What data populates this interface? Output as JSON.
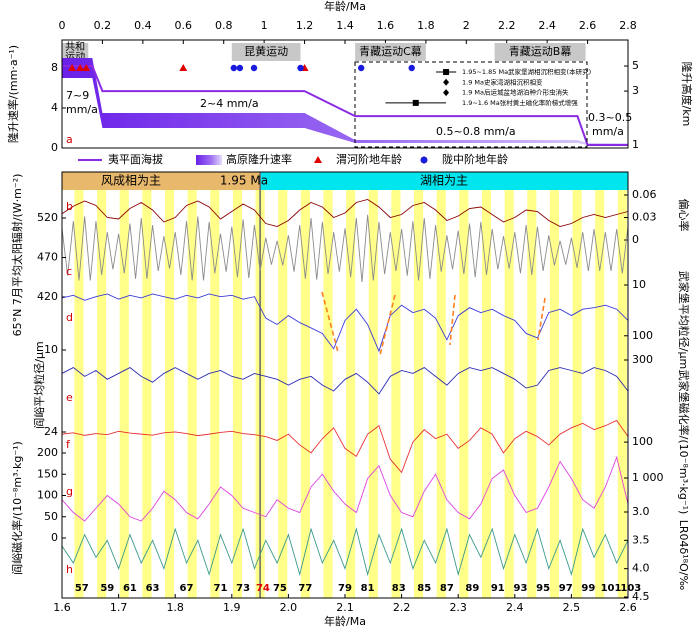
{
  "chart_data": [
    {
      "type": "line",
      "xlabel": "年龄/Ma",
      "ylabel": "隆升速率/(mm·a⁻¹)",
      "y2label": "隆升高度/km",
      "panel_label": "a",
      "xlim": [
        0,
        2.8
      ],
      "xticks": [
        0,
        0.2,
        0.4,
        0.6,
        0.8,
        1,
        1.2,
        1.4,
        1.6,
        1.8,
        2,
        2.2,
        2.4,
        2.6,
        2.8
      ],
      "ylim": [
        0,
        10.8
      ],
      "yticks": [
        0,
        4,
        8
      ],
      "y2lim": [
        0.94,
        8.5
      ],
      "y2ticks": [
        1,
        3,
        5
      ],
      "y2log": true,
      "events": [
        {
          "lines": [
            "共和",
            "运动"
          ],
          "start": 0,
          "end": 0.13
        },
        {
          "lines": [
            "昆黄运动"
          ],
          "start": 0.84,
          "end": 1.18
        },
        {
          "lines": [
            "青藏运动C幕"
          ],
          "start": 1.45,
          "end": 1.8
        },
        {
          "lines": [
            "青藏运动B幕"
          ],
          "start": 2.14,
          "end": 2.59
        }
      ],
      "annotations": [
        "7~9",
        "mm/a",
        "2~4 mm/a",
        "0.5~0.8 mm/a",
        "0.3~0.5",
        "mm/a"
      ],
      "series": [
        {
          "name": "夷平面海拔",
          "type": "line",
          "axis": "y2",
          "color": "#8a2be2",
          "x": [
            0,
            0.15,
            0.2,
            1.2,
            1.45,
            2.55,
            2.6,
            2.8
          ],
          "values": [
            5,
            5,
            3,
            3,
            1.8,
            1.8,
            1,
            1
          ]
        },
        {
          "name": "高原隆升速率",
          "type": "band",
          "color": "#7b2cf0",
          "x": [
            0,
            0.15,
            0.2,
            1.2,
            1.45,
            2.55,
            2.6,
            2.8
          ],
          "low": [
            7,
            7,
            2,
            2,
            0.5,
            0.5,
            0.3,
            0.3
          ],
          "high": [
            9,
            9,
            3.5,
            3.5,
            0.8,
            0.8,
            0.5,
            0.5
          ]
        },
        {
          "name": "渭河阶地年龄",
          "type": "marker",
          "marker": "triangle",
          "color": "#e00000",
          "x": [
            0.05,
            0.09,
            0.12,
            0.6,
            1.2
          ]
        },
        {
          "name": "陇中阶地年龄",
          "type": "marker",
          "marker": "circle",
          "color": "#1a1adc",
          "x": [
            0.85,
            0.88,
            0.95,
            1.18,
            1.48,
            1.73
          ]
        }
      ],
      "inset": [
        {
          "label": "1.95~1.85 Ma武家堡湖相沉积相变(本研究)",
          "marker": "square",
          "x": 1.9,
          "range": [
            1.85,
            1.95
          ]
        },
        {
          "label": "1.9 Ma史家湾湖相沉积相变",
          "marker": "diamond",
          "x": 1.9
        },
        {
          "label": "1.9 Ma后运城盆地湖泊种介形虫消失",
          "marker": "diamond",
          "x": 1.9
        },
        {
          "label": "1.9~1.6 Ma张村黄土磁化率阶梯式增强",
          "marker": "square",
          "x": 1.75,
          "range": [
            1.6,
            1.9
          ]
        }
      ]
    },
    {
      "type": "line",
      "xlabel": "年龄/Ma",
      "xlim": [
        1.6,
        2.6
      ],
      "xticks": [
        1.6,
        1.7,
        1.8,
        1.9,
        {
          "value": 2,
          "label": "2.0"
        },
        2.1,
        2.2,
        2.3,
        2.4,
        2.5,
        2.6
      ],
      "phases": [
        {
          "label": "风成相为主",
          "start": 1.6,
          "end": 1.95,
          "color": "#e8b86d"
        },
        {
          "label": "湖相为主",
          "start": 1.95,
          "end": 2.6,
          "color": "#00e5ee"
        }
      ],
      "boundary": {
        "x": 1.95,
        "label": "1.95 Ma"
      },
      "stripes": [
        [
          1.622,
          1.638
        ],
        [
          1.662,
          1.678
        ],
        [
          1.702,
          1.718
        ],
        [
          1.742,
          1.758
        ],
        [
          1.782,
          1.798
        ],
        [
          1.822,
          1.838
        ],
        [
          1.862,
          1.878
        ],
        [
          1.902,
          1.918
        ],
        [
          1.942,
          1.958
        ],
        [
          1.982,
          1.998
        ],
        [
          2.022,
          2.038
        ],
        [
          2.062,
          2.078
        ],
        [
          2.102,
          2.118
        ],
        [
          2.142,
          2.158
        ],
        [
          2.182,
          2.198
        ],
        [
          2.222,
          2.238
        ],
        [
          2.262,
          2.278
        ],
        [
          2.302,
          2.318
        ],
        [
          2.342,
          2.358
        ],
        [
          2.382,
          2.398
        ],
        [
          2.422,
          2.438
        ],
        [
          2.462,
          2.478
        ],
        [
          2.502,
          2.518
        ],
        [
          2.542,
          2.558
        ],
        [
          2.582,
          2.598
        ]
      ],
      "mis_labels": [
        {
          "text": "57",
          "x": 1.635
        },
        {
          "text": "59",
          "x": 1.68
        },
        {
          "text": "61",
          "x": 1.72
        },
        {
          "text": "63",
          "x": 1.76
        },
        {
          "text": "67",
          "x": 1.82
        },
        {
          "text": "71",
          "x": 1.88
        },
        {
          "text": "73",
          "x": 1.92
        },
        {
          "text": "74",
          "x": 1.955,
          "color": "#e00000"
        },
        {
          "text": "75",
          "x": 1.985
        },
        {
          "text": "77",
          "x": 2.03
        },
        {
          "text": "79",
          "x": 2.1
        },
        {
          "text": "81",
          "x": 2.14
        },
        {
          "text": "83",
          "x": 2.195
        },
        {
          "text": "85",
          "x": 2.24
        },
        {
          "text": "87",
          "x": 2.28
        },
        {
          "text": "89",
          "x": 2.325
        },
        {
          "text": "91",
          "x": 2.37
        },
        {
          "text": "93",
          "x": 2.41
        },
        {
          "text": "95",
          "x": 2.45
        },
        {
          "text": "97",
          "x": 2.49
        },
        {
          "text": "99",
          "x": 2.53
        },
        {
          "text": "101",
          "x": 2.57
        },
        {
          "text": "103",
          "x": 2.605
        }
      ],
      "x": [
        1.6,
        1.62,
        1.64,
        1.66,
        1.68,
        1.7,
        1.72,
        1.74,
        1.76,
        1.78,
        1.8,
        1.82,
        1.84,
        1.86,
        1.88,
        1.9,
        1.92,
        1.94,
        1.96,
        1.98,
        2,
        2.02,
        2.04,
        2.06,
        2.08,
        2.1,
        2.12,
        2.14,
        2.16,
        2.18,
        2.2,
        2.22,
        2.24,
        2.26,
        2.28,
        2.3,
        2.32,
        2.34,
        2.36,
        2.38,
        2.4,
        2.42,
        2.44,
        2.46,
        2.48,
        2.5,
        2.52,
        2.54,
        2.56,
        2.58,
        2.6
      ],
      "series": [
        {
          "name": "b",
          "axis_label": "偏心率",
          "side": "right",
          "color": "#8b0000",
          "ylim": [
            0,
            0.06
          ],
          "yticks": [
            0,
            0.03,
            0.06
          ],
          "values": [
            0.035,
            0.045,
            0.052,
            0.046,
            0.03,
            0.028,
            0.042,
            0.05,
            0.04,
            0.024,
            0.03,
            0.046,
            0.052,
            0.044,
            0.028,
            0.038,
            0.048,
            0.04,
            0.022,
            0.018,
            0.026,
            0.04,
            0.05,
            0.044,
            0.03,
            0.036,
            0.05,
            0.054,
            0.044,
            0.03,
            0.034,
            0.046,
            0.05,
            0.04,
            0.026,
            0.032,
            0.042,
            0.044,
            0.034,
            0.024,
            0.03,
            0.04,
            0.038,
            0.026,
            0.018,
            0.022,
            0.03,
            0.034,
            0.03,
            0.034,
            0.038
          ]
        },
        {
          "name": "c",
          "axis_label": "65°N 7月平均太阳辐射/(W·m⁻²)",
          "side": "left",
          "color": "#8c8c8c",
          "ylim": [
            420,
            520
          ],
          "yticks": [
            420,
            470,
            520
          ],
          "x": [
            1.6,
            1.61,
            1.62,
            1.63,
            1.64,
            1.65,
            1.66,
            1.67,
            1.68,
            1.69,
            1.7,
            1.71,
            1.72,
            1.73,
            1.74,
            1.75,
            1.76,
            1.77,
            1.78,
            1.79,
            1.8,
            1.81,
            1.82,
            1.83,
            1.84,
            1.85,
            1.86,
            1.87,
            1.88,
            1.89,
            1.9,
            1.91,
            1.92,
            1.93,
            1.94,
            1.95,
            1.96,
            1.97,
            1.98,
            1.99,
            2,
            2.01,
            2.02,
            2.03,
            2.04,
            2.05,
            2.06,
            2.07,
            2.08,
            2.09,
            2.1,
            2.11,
            2.12,
            2.13,
            2.14,
            2.15,
            2.16,
            2.17,
            2.18,
            2.19,
            2.2,
            2.21,
            2.22,
            2.23,
            2.24,
            2.25,
            2.26,
            2.27,
            2.28,
            2.29,
            2.3,
            2.31,
            2.32,
            2.33,
            2.34,
            2.35,
            2.36,
            2.37,
            2.38,
            2.39,
            2.4,
            2.41,
            2.42,
            2.43,
            2.44,
            2.45,
            2.46,
            2.47,
            2.48,
            2.49,
            2.5,
            2.51,
            2.52,
            2.53,
            2.54,
            2.55,
            2.56,
            2.57,
            2.58,
            2.59,
            2.6
          ],
          "values": [
            507,
            447,
            516,
            441,
            522,
            441,
            516,
            448,
            502,
            455,
            500,
            450,
            513,
            443,
            520,
            443,
            511,
            453,
            497,
            456,
            502,
            448,
            516,
            441,
            522,
            441,
            515,
            450,
            500,
            452,
            509,
            445,
            518,
            444,
            511,
            453,
            495,
            461,
            491,
            460,
            498,
            452,
            511,
            443,
            520,
            442,
            515,
            449,
            502,
            452,
            507,
            445,
            520,
            439,
            524,
            441,
            515,
            449,
            502,
            453,
            506,
            447,
            516,
            441,
            520,
            443,
            511,
            452,
            498,
            455,
            504,
            449,
            513,
            445,
            515,
            448,
            506,
            455,
            497,
            456,
            502,
            450,
            511,
            448,
            509,
            453,
            498,
            460,
            491,
            461,
            495,
            457,
            502,
            453,
            506,
            453,
            502,
            453,
            506,
            450,
            509
          ]
        },
        {
          "name": "d",
          "axis_label": "武家堡平均粒径/μm",
          "side": "right",
          "color": "#3a3ad8",
          "log": true,
          "inverted": true,
          "ylim": [
            10,
            300
          ],
          "yticks": [
            10,
            100,
            300
          ],
          "values": [
            18,
            16,
            20,
            17,
            15,
            19,
            16,
            18,
            15,
            17,
            19,
            16,
            18,
            15,
            17,
            16,
            19,
            17,
            45,
            60,
            40,
            55,
            70,
            90,
            180,
            50,
            30,
            60,
            200,
            40,
            25,
            35,
            30,
            45,
            120,
            40,
            28,
            35,
            30,
            40,
            50,
            90,
            110,
            35,
            30,
            40,
            30,
            28,
            25,
            30,
            50
          ]
        },
        {
          "name": "e",
          "axis_label": "阎峪平均粒径/μm",
          "side": "left",
          "color": "#2a2ab0",
          "inverted": true,
          "ylim": [
            10,
            24
          ],
          "yticks": [
            10,
            24
          ],
          "values": [
            14,
            13,
            14.5,
            13.5,
            15,
            14,
            13,
            14.5,
            15.5,
            14,
            13,
            14,
            15,
            14,
            13.5,
            14.5,
            15,
            14,
            14.5,
            15,
            16,
            15,
            14.5,
            16,
            17,
            15,
            14,
            15.5,
            17.5,
            14.5,
            13.5,
            14,
            13,
            14.5,
            16,
            14,
            13,
            13.5,
            13,
            14,
            15,
            16.5,
            16,
            13.5,
            13,
            13.5,
            14,
            13,
            13.5,
            14.5,
            17
          ]
        },
        {
          "name": "f",
          "axis_label": "武家堡磁化率/(10⁻⁸m³·kg⁻¹)",
          "side": "right",
          "color": "#e83030",
          "log": true,
          "inverted": true,
          "ylim": [
            20,
            1000
          ],
          "yticks": [
            100,
            {
              "value": 1000,
              "label": "1 000"
            }
          ],
          "values": [
            60,
            55,
            65,
            58,
            62,
            50,
            56,
            60,
            64,
            55,
            52,
            58,
            66,
            60,
            54,
            50,
            58,
            62,
            70,
            90,
            60,
            120,
            200,
            80,
            40,
            150,
            250,
            60,
            35,
            300,
            700,
            100,
            45,
            80,
            60,
            150,
            90,
            40,
            60,
            200,
            80,
            50,
            70,
            120,
            60,
            40,
            30,
            45,
            35,
            25,
            70
          ]
        },
        {
          "name": "g",
          "axis_label": "阎峪磁化率/(10⁻⁸m³·kg⁻¹)",
          "side": "left",
          "color": "#e040e0",
          "ylim": [
            0,
            200
          ],
          "yticks": [
            0,
            50,
            100,
            150,
            200
          ],
          "values": [
            90,
            60,
            40,
            70,
            100,
            80,
            50,
            40,
            70,
            110,
            90,
            60,
            45,
            80,
            120,
            100,
            70,
            60,
            50,
            90,
            70,
            60,
            120,
            150,
            110,
            80,
            60,
            140,
            170,
            100,
            60,
            50,
            110,
            150,
            90,
            60,
            45,
            80,
            140,
            160,
            100,
            60,
            70,
            120,
            180,
            140,
            90,
            70,
            120,
            190,
            80
          ]
        },
        {
          "name": "h",
          "axis_label": "LR04δ¹⁸O/‰",
          "side": "right",
          "color": "#3a9a8a",
          "inverted": true,
          "ylim": [
            3,
            4.5
          ],
          "yticks": [
            {
              "value": 3,
              "label": "3.0"
            },
            3.5,
            {
              "value": 4,
              "label": "4.0"
            },
            4.5
          ],
          "values": [
            3.6,
            3.9,
            3.4,
            3.8,
            3.5,
            4.0,
            3.4,
            3.9,
            3.5,
            4.0,
            3.3,
            3.9,
            3.5,
            4.1,
            3.4,
            3.9,
            3.3,
            4.0,
            3.5,
            3.9,
            3.4,
            4.1,
            3.3,
            3.9,
            3.5,
            4.0,
            3.3,
            4.1,
            3.4,
            3.9,
            3.3,
            4.0,
            3.5,
            3.9,
            3.3,
            4.1,
            3.4,
            3.8,
            3.3,
            4.0,
            3.4,
            3.9,
            3.3,
            4.0,
            3.5,
            4.1,
            3.3,
            3.8,
            3.4,
            3.9,
            3.5
          ]
        }
      ]
    }
  ]
}
